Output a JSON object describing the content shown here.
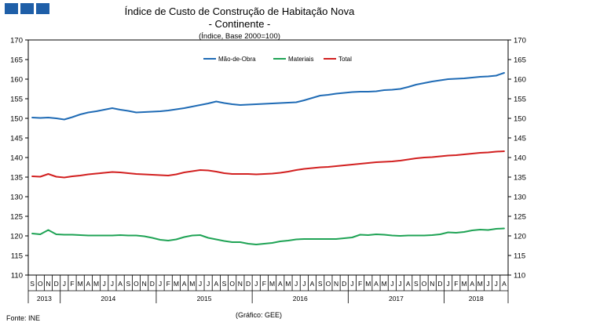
{
  "logo": {
    "name": "logo-squares",
    "color": "#1f5fa8"
  },
  "chart_data": {
    "type": "line",
    "title": "Índice de Custo de Construção de Habitação Nova",
    "subtitle": "- Continente -",
    "unit_note": "(Índice, Base 2000=100)",
    "source": "Fonte: INE",
    "credit": "(Gráfico: GEE)",
    "ylim": [
      110,
      170
    ],
    "yticks": [
      110,
      115,
      120,
      125,
      130,
      135,
      140,
      145,
      150,
      155,
      160,
      165,
      170
    ],
    "grid": false,
    "legend_position": "top-center",
    "x": [
      "S",
      "O",
      "N",
      "D",
      "J",
      "F",
      "M",
      "A",
      "M",
      "J",
      "J",
      "A",
      "S",
      "O",
      "N",
      "D",
      "J",
      "F",
      "M",
      "A",
      "M",
      "J",
      "J",
      "A",
      "S",
      "O",
      "N",
      "D",
      "J",
      "F",
      "M",
      "A",
      "M",
      "J",
      "J",
      "A",
      "S",
      "O",
      "N",
      "D",
      "J",
      "F",
      "M",
      "A",
      "M",
      "J",
      "J",
      "A",
      "S",
      "O",
      "N",
      "D",
      "J",
      "F",
      "M",
      "A",
      "M",
      "J",
      "J",
      "A"
    ],
    "years": [
      {
        "label": "2013",
        "start": 0,
        "count": 4
      },
      {
        "label": "2014",
        "start": 4,
        "count": 12
      },
      {
        "label": "2015",
        "start": 16,
        "count": 12
      },
      {
        "label": "2016",
        "start": 28,
        "count": 12
      },
      {
        "label": "2017",
        "start": 40,
        "count": 12
      },
      {
        "label": "2018",
        "start": 52,
        "count": 8
      }
    ],
    "series": [
      {
        "name": "Mão-de-Obra",
        "color": "#1f6bb5",
        "values": [
          150.2,
          150.1,
          150.2,
          150.0,
          149.7,
          150.3,
          151.0,
          151.5,
          151.8,
          152.2,
          152.6,
          152.2,
          151.9,
          151.5,
          151.6,
          151.7,
          151.8,
          152.0,
          152.3,
          152.6,
          153.0,
          153.4,
          153.8,
          154.3,
          153.9,
          153.6,
          153.4,
          153.5,
          153.6,
          153.7,
          153.8,
          153.9,
          154.0,
          154.1,
          154.6,
          155.2,
          155.8,
          156.0,
          156.3,
          156.5,
          156.7,
          156.8,
          156.8,
          156.9,
          157.2,
          157.3,
          157.5,
          158.0,
          158.6,
          159.0,
          159.4,
          159.7,
          160.0,
          160.1,
          160.2,
          160.4,
          160.6,
          160.7,
          160.9,
          161.6
        ]
      },
      {
        "name": "Materiais",
        "color": "#1fa355",
        "values": [
          120.6,
          120.4,
          121.5,
          120.4,
          120.3,
          120.3,
          120.2,
          120.1,
          120.1,
          120.1,
          120.1,
          120.2,
          120.1,
          120.1,
          119.9,
          119.5,
          119.0,
          118.8,
          119.1,
          119.7,
          120.1,
          120.2,
          119.5,
          119.1,
          118.7,
          118.4,
          118.4,
          118.0,
          117.8,
          118.0,
          118.2,
          118.6,
          118.8,
          119.1,
          119.2,
          119.2,
          119.2,
          119.2,
          119.2,
          119.4,
          119.6,
          120.3,
          120.2,
          120.4,
          120.3,
          120.1,
          120.0,
          120.1,
          120.1,
          120.1,
          120.2,
          120.4,
          120.9,
          120.8,
          121.0,
          121.4,
          121.6,
          121.5,
          121.8,
          121.9
        ]
      },
      {
        "name": "Total",
        "color": "#d22020",
        "values": [
          135.2,
          135.1,
          135.8,
          135.1,
          134.9,
          135.2,
          135.4,
          135.7,
          135.9,
          136.1,
          136.3,
          136.2,
          136.0,
          135.8,
          135.7,
          135.6,
          135.5,
          135.4,
          135.7,
          136.2,
          136.5,
          136.8,
          136.7,
          136.4,
          136.0,
          135.8,
          135.8,
          135.8,
          135.7,
          135.8,
          135.9,
          136.1,
          136.4,
          136.8,
          137.1,
          137.3,
          137.5,
          137.6,
          137.8,
          138.0,
          138.2,
          138.4,
          138.6,
          138.8,
          138.9,
          139.0,
          139.2,
          139.5,
          139.8,
          140.0,
          140.1,
          140.3,
          140.5,
          140.6,
          140.8,
          141.0,
          141.2,
          141.3,
          141.5,
          141.6
        ]
      }
    ]
  }
}
